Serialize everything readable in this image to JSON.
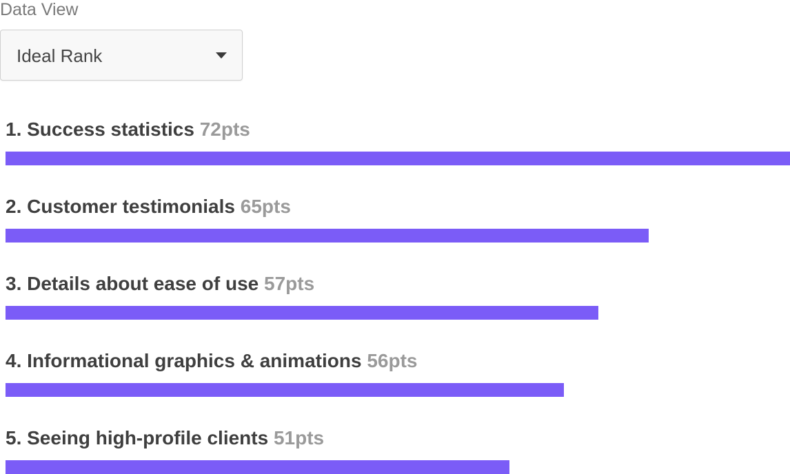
{
  "data_view": {
    "label": "Data View",
    "selected": "Ideal Rank"
  },
  "colors": {
    "bar": "#7b5cf7",
    "label_text": "#3f3f3f",
    "points_text": "#9a9a9a"
  },
  "chart_data": {
    "type": "bar",
    "orientation": "horizontal",
    "categories": [
      "1. Success statistics",
      "2. Customer testimonials",
      "3. Details about ease of use",
      "4. Informational graphics & animations",
      "5. Seeing high-profile clients"
    ],
    "values": [
      72,
      65,
      57,
      56,
      51
    ],
    "value_labels": [
      "72pts",
      "65pts",
      "57pts",
      "56pts",
      "51pts"
    ],
    "bar_fill_fractions": [
      1.0,
      0.82,
      0.756,
      0.712,
      0.642
    ],
    "grid": false
  }
}
